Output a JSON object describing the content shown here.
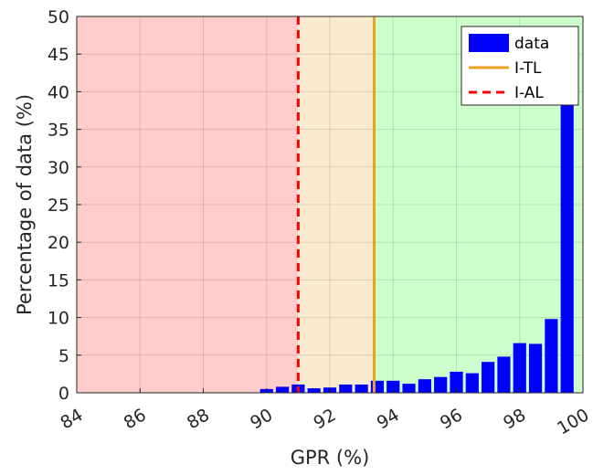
{
  "chart_data": {
    "type": "bar",
    "xlabel": "GPR (%)",
    "ylabel": "Percentage of data (%)",
    "xlim": [
      84,
      100
    ],
    "ylim": [
      0,
      50
    ],
    "xticks": [
      84,
      86,
      88,
      90,
      92,
      94,
      96,
      98,
      100
    ],
    "yticks": [
      0,
      5,
      10,
      15,
      20,
      25,
      30,
      35,
      40,
      45,
      50
    ],
    "grid": true,
    "bin_width": 0.5,
    "series": [
      {
        "name": "data",
        "color": "#0000ff",
        "x": [
          85,
          85.5,
          86,
          86.5,
          87,
          87.5,
          88,
          88.5,
          89,
          89.5,
          90,
          90.5,
          91,
          91.5,
          92,
          92.5,
          93,
          93.5,
          94,
          94.5,
          95,
          95.5,
          96,
          96.5,
          97,
          97.5,
          98,
          98.5,
          99,
          99.5
        ],
        "values": [
          0.05,
          0.05,
          0.05,
          0.05,
          0.05,
          0.05,
          0.05,
          0.05,
          0.05,
          0.05,
          0.5,
          0.8,
          1.1,
          0.6,
          0.7,
          1.1,
          1.1,
          1.6,
          1.6,
          1.2,
          1.8,
          2.1,
          2.8,
          2.6,
          4.1,
          4.8,
          6.6,
          6.5,
          9.8,
          47.3
        ]
      }
    ],
    "reference_lines": [
      {
        "name": "I-TL",
        "x": 93.4,
        "color": "#f0a020",
        "style": "solid"
      },
      {
        "name": "I-AL",
        "x": 91.0,
        "color": "#ff0000",
        "style": "dashed"
      }
    ],
    "regions": [
      {
        "from": 84,
        "to": 91.0,
        "color": "#ffcccc"
      },
      {
        "from": 91.0,
        "to": 93.4,
        "color": "#faebd0"
      },
      {
        "from": 93.4,
        "to": 100,
        "color": "#ccffcc"
      }
    ],
    "legend": {
      "position": "top-right",
      "entries": [
        "data",
        "I-TL",
        "I-AL"
      ]
    }
  }
}
